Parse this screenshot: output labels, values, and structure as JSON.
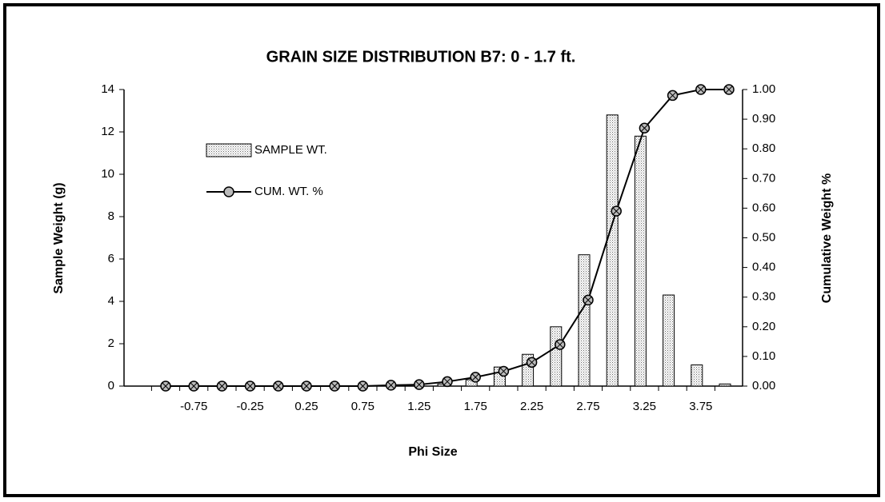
{
  "chart_data": {
    "type": "bar-line",
    "title": "GRAIN SIZE DISTRIBUTION B7:  0 - 1.7 ft.",
    "x_label": "Phi Size",
    "y_label": "Sample Weight (g)",
    "y2_label": "Cumulative Weight %",
    "categories": [
      null,
      "-0.75",
      null,
      "-0.25",
      null,
      "0.25",
      null,
      "0.75",
      null,
      "1.25",
      null,
      "1.75",
      null,
      "2.25",
      null,
      "2.75",
      null,
      "3.25",
      null,
      "3.75",
      null
    ],
    "series": [
      {
        "name": "SAMPLE WT.",
        "type": "bar",
        "color": "#bdbdbd",
        "values": [
          0,
          0,
          0,
          0,
          0,
          0,
          0,
          0,
          0,
          0.05,
          0.1,
          0.3,
          0.9,
          1.5,
          2.8,
          6.2,
          12.8,
          11.8,
          4.3,
          1.0,
          0.1
        ]
      },
      {
        "name": "CUM. WT. %",
        "type": "line",
        "axis": "y2",
        "color": "#000000",
        "values": [
          0,
          0,
          0,
          0,
          0,
          0,
          0,
          0,
          0.003,
          0.005,
          0.015,
          0.03,
          0.05,
          0.08,
          0.14,
          0.29,
          0.59,
          0.87,
          0.98,
          1.0,
          1.0
        ]
      }
    ],
    "ylim": [
      0,
      14
    ],
    "yticks": [
      0,
      2,
      4,
      6,
      8,
      10,
      12,
      14
    ],
    "y2lim": [
      0,
      1
    ],
    "y2ticks": [
      {
        "value": 0,
        "label": "0.00"
      },
      {
        "value": 0.1,
        "label": "0.10"
      },
      {
        "value": 0.2,
        "label": "0.20"
      },
      {
        "value": 0.3,
        "label": "0.30"
      },
      {
        "value": 0.4,
        "label": "0.40"
      },
      {
        "value": 0.5,
        "label": "0.50"
      },
      {
        "value": 0.6,
        "label": "0.60"
      },
      {
        "value": 0.7,
        "label": "0.70"
      },
      {
        "value": 0.8,
        "label": "0.80"
      },
      {
        "value": 0.9,
        "label": "0.90"
      },
      {
        "value": 1,
        "label": "1.00"
      }
    ],
    "grid": false
  }
}
